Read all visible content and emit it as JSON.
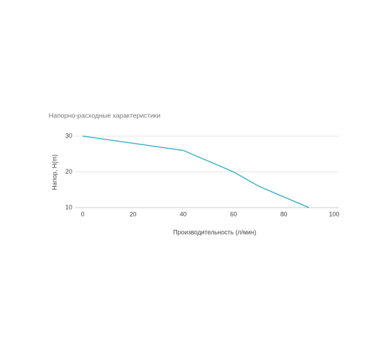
{
  "chart_data": {
    "type": "line",
    "title": "Напорно-расходные характеристики",
    "x_label": "Производительность (л/мин)",
    "y_label": "Напор, H(m)",
    "x": [
      0,
      40,
      60,
      70,
      90
    ],
    "series": [
      {
        "name": "Напор",
        "color": "#3fb3c9",
        "values": [
          30,
          26,
          20,
          16,
          10
        ]
      }
    ],
    "xlim": [
      0,
      100
    ],
    "xticks": [
      0,
      20,
      40,
      60,
      80,
      100
    ],
    "ylim": [
      10,
      30
    ],
    "yticks": [
      10,
      20,
      30
    ],
    "grid": true
  }
}
